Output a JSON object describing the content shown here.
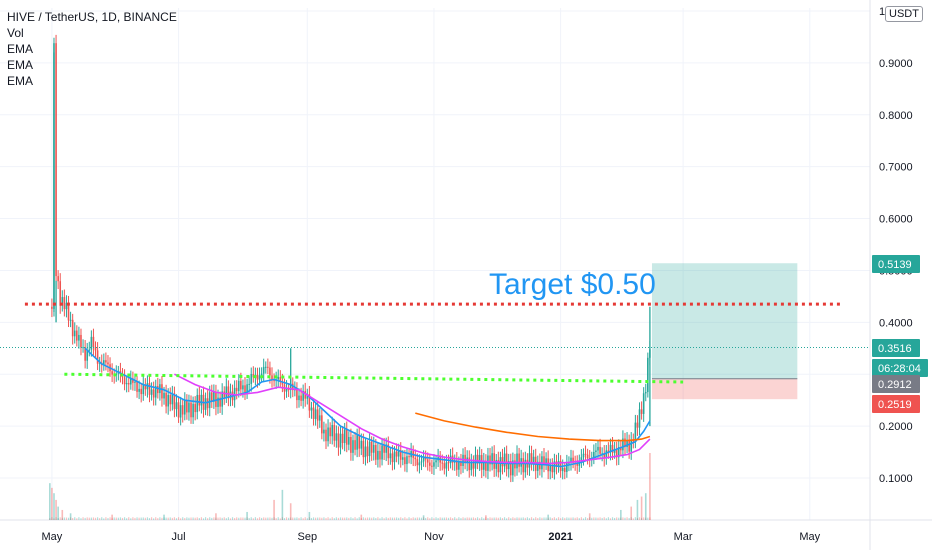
{
  "header": {
    "symbol_line": "HIVE / TetherUS, 1D, BINANCE",
    "indicators": [
      "Vol",
      "EMA",
      "EMA",
      "EMA"
    ],
    "currency": "USDT"
  },
  "annotation": {
    "text": "Target $0.50",
    "color": "#2196f3"
  },
  "price_badges": [
    {
      "label": "0.5139",
      "value": 0.5139,
      "color": "#26a69a"
    },
    {
      "label": "0.3516",
      "value": 0.3516,
      "color": "#26a69a"
    },
    {
      "label": "06:28:04",
      "value": 0.311,
      "color": "#26a69a"
    },
    {
      "label": "0.2912",
      "value": 0.2912,
      "color": "#787b86"
    },
    {
      "label": "0.2519",
      "value": 0.2519,
      "color": "#ef5350"
    }
  ],
  "colors": {
    "up": "#26a69a",
    "down": "#ef5350",
    "ema_short": "#2196f3",
    "ema_mid": "#e040fb",
    "ema_long": "#ff6d00",
    "resistance": "#e53935",
    "support": "#4cff2f"
  },
  "chart_data": {
    "type": "candlestick",
    "ylim": [
      0,
      1.0
    ],
    "y_ticks": [
      {
        "label": "1",
        "value": 1.0
      },
      {
        "label": "0.9000",
        "value": 0.9
      },
      {
        "label": "0.8000",
        "value": 0.8
      },
      {
        "label": "0.7000",
        "value": 0.7
      },
      {
        "label": "0.6000",
        "value": 0.6
      },
      {
        "label": "0.5000",
        "value": 0.5
      },
      {
        "label": "0.4000",
        "value": 0.4
      },
      {
        "label": "0.3000",
        "value": 0.3
      },
      {
        "label": "0.2000",
        "value": 0.2
      },
      {
        "label": "0.1000",
        "value": 0.1
      }
    ],
    "x_ticks": [
      {
        "label": "May",
        "value": 121
      },
      {
        "label": "Jul",
        "value": 182
      },
      {
        "label": "Sep",
        "value": 244
      },
      {
        "label": "Nov",
        "value": 305
      },
      {
        "label": "2021",
        "value": 366,
        "bold": true
      },
      {
        "label": "Mar",
        "value": 425
      },
      {
        "label": "May",
        "value": 486
      }
    ],
    "xlim": [
      96,
      515
    ],
    "price_path": [
      [
        121,
        0.43
      ],
      [
        122,
        0.92
      ],
      [
        123,
        0.5
      ],
      [
        125,
        0.45
      ],
      [
        128,
        0.42
      ],
      [
        131,
        0.39
      ],
      [
        134,
        0.36
      ],
      [
        137,
        0.34
      ],
      [
        140,
        0.36
      ],
      [
        143,
        0.33
      ],
      [
        146,
        0.32
      ],
      [
        149,
        0.31
      ],
      [
        152,
        0.3
      ],
      [
        156,
        0.29
      ],
      [
        160,
        0.28
      ],
      [
        165,
        0.27
      ],
      [
        170,
        0.27
      ],
      [
        175,
        0.26
      ],
      [
        180,
        0.24
      ],
      [
        185,
        0.23
      ],
      [
        190,
        0.24
      ],
      [
        195,
        0.25
      ],
      [
        200,
        0.25
      ],
      [
        205,
        0.26
      ],
      [
        210,
        0.27
      ],
      [
        215,
        0.28
      ],
      [
        220,
        0.3
      ],
      [
        225,
        0.31
      ],
      [
        228,
        0.29
      ],
      [
        232,
        0.28
      ],
      [
        236,
        0.27
      ],
      [
        240,
        0.26
      ],
      [
        244,
        0.25
      ],
      [
        248,
        0.22
      ],
      [
        252,
        0.19
      ],
      [
        258,
        0.18
      ],
      [
        264,
        0.17
      ],
      [
        270,
        0.16
      ],
      [
        276,
        0.15
      ],
      [
        282,
        0.15
      ],
      [
        288,
        0.14
      ],
      [
        294,
        0.14
      ],
      [
        300,
        0.13
      ],
      [
        306,
        0.13
      ],
      [
        312,
        0.13
      ],
      [
        318,
        0.13
      ],
      [
        324,
        0.13
      ],
      [
        330,
        0.13
      ],
      [
        336,
        0.13
      ],
      [
        342,
        0.125
      ],
      [
        348,
        0.13
      ],
      [
        354,
        0.13
      ],
      [
        360,
        0.125
      ],
      [
        366,
        0.12
      ],
      [
        372,
        0.13
      ],
      [
        378,
        0.14
      ],
      [
        384,
        0.15
      ],
      [
        390,
        0.15
      ],
      [
        396,
        0.16
      ],
      [
        400,
        0.17
      ],
      [
        403,
        0.2
      ],
      [
        405,
        0.24
      ],
      [
        407,
        0.28
      ],
      [
        409,
        0.3516
      ]
    ],
    "spikes": [
      {
        "x": 122,
        "high": 0.92,
        "low": 0.42
      },
      {
        "x": 123,
        "high": 0.48,
        "low": 0.4
      },
      {
        "x": 236,
        "high": 0.35,
        "low": 0.27
      },
      {
        "x": 409,
        "high": 0.43,
        "low": 0.2
      }
    ],
    "ema_series": [
      {
        "key": "ema_short",
        "points": [
          [
            137,
            0.35
          ],
          [
            145,
            0.32
          ],
          [
            155,
            0.3
          ],
          [
            165,
            0.28
          ],
          [
            175,
            0.27
          ],
          [
            185,
            0.25
          ],
          [
            195,
            0.245
          ],
          [
            205,
            0.255
          ],
          [
            215,
            0.265
          ],
          [
            222,
            0.285
          ],
          [
            228,
            0.29
          ],
          [
            236,
            0.28
          ],
          [
            244,
            0.26
          ],
          [
            252,
            0.23
          ],
          [
            260,
            0.2
          ],
          [
            270,
            0.18
          ],
          [
            280,
            0.165
          ],
          [
            290,
            0.15
          ],
          [
            300,
            0.14
          ],
          [
            310,
            0.135
          ],
          [
            320,
            0.13
          ],
          [
            330,
            0.13
          ],
          [
            340,
            0.128
          ],
          [
            350,
            0.128
          ],
          [
            360,
            0.125
          ],
          [
            366,
            0.122
          ],
          [
            376,
            0.13
          ],
          [
            386,
            0.145
          ],
          [
            396,
            0.16
          ],
          [
            402,
            0.17
          ],
          [
            406,
            0.19
          ],
          [
            409,
            0.21
          ]
        ]
      },
      {
        "key": "ema_mid",
        "points": [
          [
            180,
            0.3
          ],
          [
            190,
            0.28
          ],
          [
            200,
            0.265
          ],
          [
            210,
            0.26
          ],
          [
            220,
            0.265
          ],
          [
            230,
            0.275
          ],
          [
            240,
            0.27
          ],
          [
            250,
            0.245
          ],
          [
            260,
            0.22
          ],
          [
            270,
            0.195
          ],
          [
            280,
            0.175
          ],
          [
            290,
            0.16
          ],
          [
            300,
            0.148
          ],
          [
            310,
            0.14
          ],
          [
            320,
            0.135
          ],
          [
            330,
            0.132
          ],
          [
            340,
            0.13
          ],
          [
            350,
            0.13
          ],
          [
            360,
            0.128
          ],
          [
            370,
            0.13
          ],
          [
            380,
            0.135
          ],
          [
            390,
            0.14
          ],
          [
            398,
            0.145
          ],
          [
            404,
            0.155
          ],
          [
            409,
            0.175
          ]
        ]
      },
      {
        "key": "ema_long",
        "points": [
          [
            296,
            0.225
          ],
          [
            310,
            0.21
          ],
          [
            325,
            0.198
          ],
          [
            340,
            0.188
          ],
          [
            355,
            0.18
          ],
          [
            370,
            0.175
          ],
          [
            385,
            0.172
          ],
          [
            398,
            0.172
          ],
          [
            405,
            0.175
          ],
          [
            409,
            0.18
          ]
        ]
      }
    ],
    "volume_max": 1.0,
    "volume_bars": [
      [
        120,
        0.55
      ],
      [
        121,
        0.48
      ],
      [
        122,
        0.4
      ],
      [
        123,
        0.3
      ],
      [
        124,
        0.2
      ],
      [
        126,
        0.15
      ],
      [
        130,
        0.1
      ],
      [
        150,
        0.08
      ],
      [
        175,
        0.08
      ],
      [
        200,
        0.1
      ],
      [
        215,
        0.12
      ],
      [
        228,
        0.3
      ],
      [
        232,
        0.45
      ],
      [
        236,
        0.25
      ],
      [
        245,
        0.12
      ],
      [
        270,
        0.08
      ],
      [
        300,
        0.07
      ],
      [
        330,
        0.07
      ],
      [
        360,
        0.08
      ],
      [
        380,
        0.1
      ],
      [
        395,
        0.15
      ],
      [
        400,
        0.2
      ],
      [
        403,
        0.3
      ],
      [
        405,
        0.35
      ],
      [
        407,
        0.4
      ],
      [
        409,
        1.0
      ]
    ],
    "resistance_level": 0.435,
    "resistance_range": [
      108,
      502
    ],
    "support_line": {
      "x1": 127,
      "y1": 0.3,
      "x2": 425,
      "y2": 0.285
    },
    "position": {
      "x1": 410,
      "x2": 480,
      "entry": 0.2912,
      "target": 0.5139,
      "stop": 0.2519
    },
    "current_price": 0.3516
  }
}
